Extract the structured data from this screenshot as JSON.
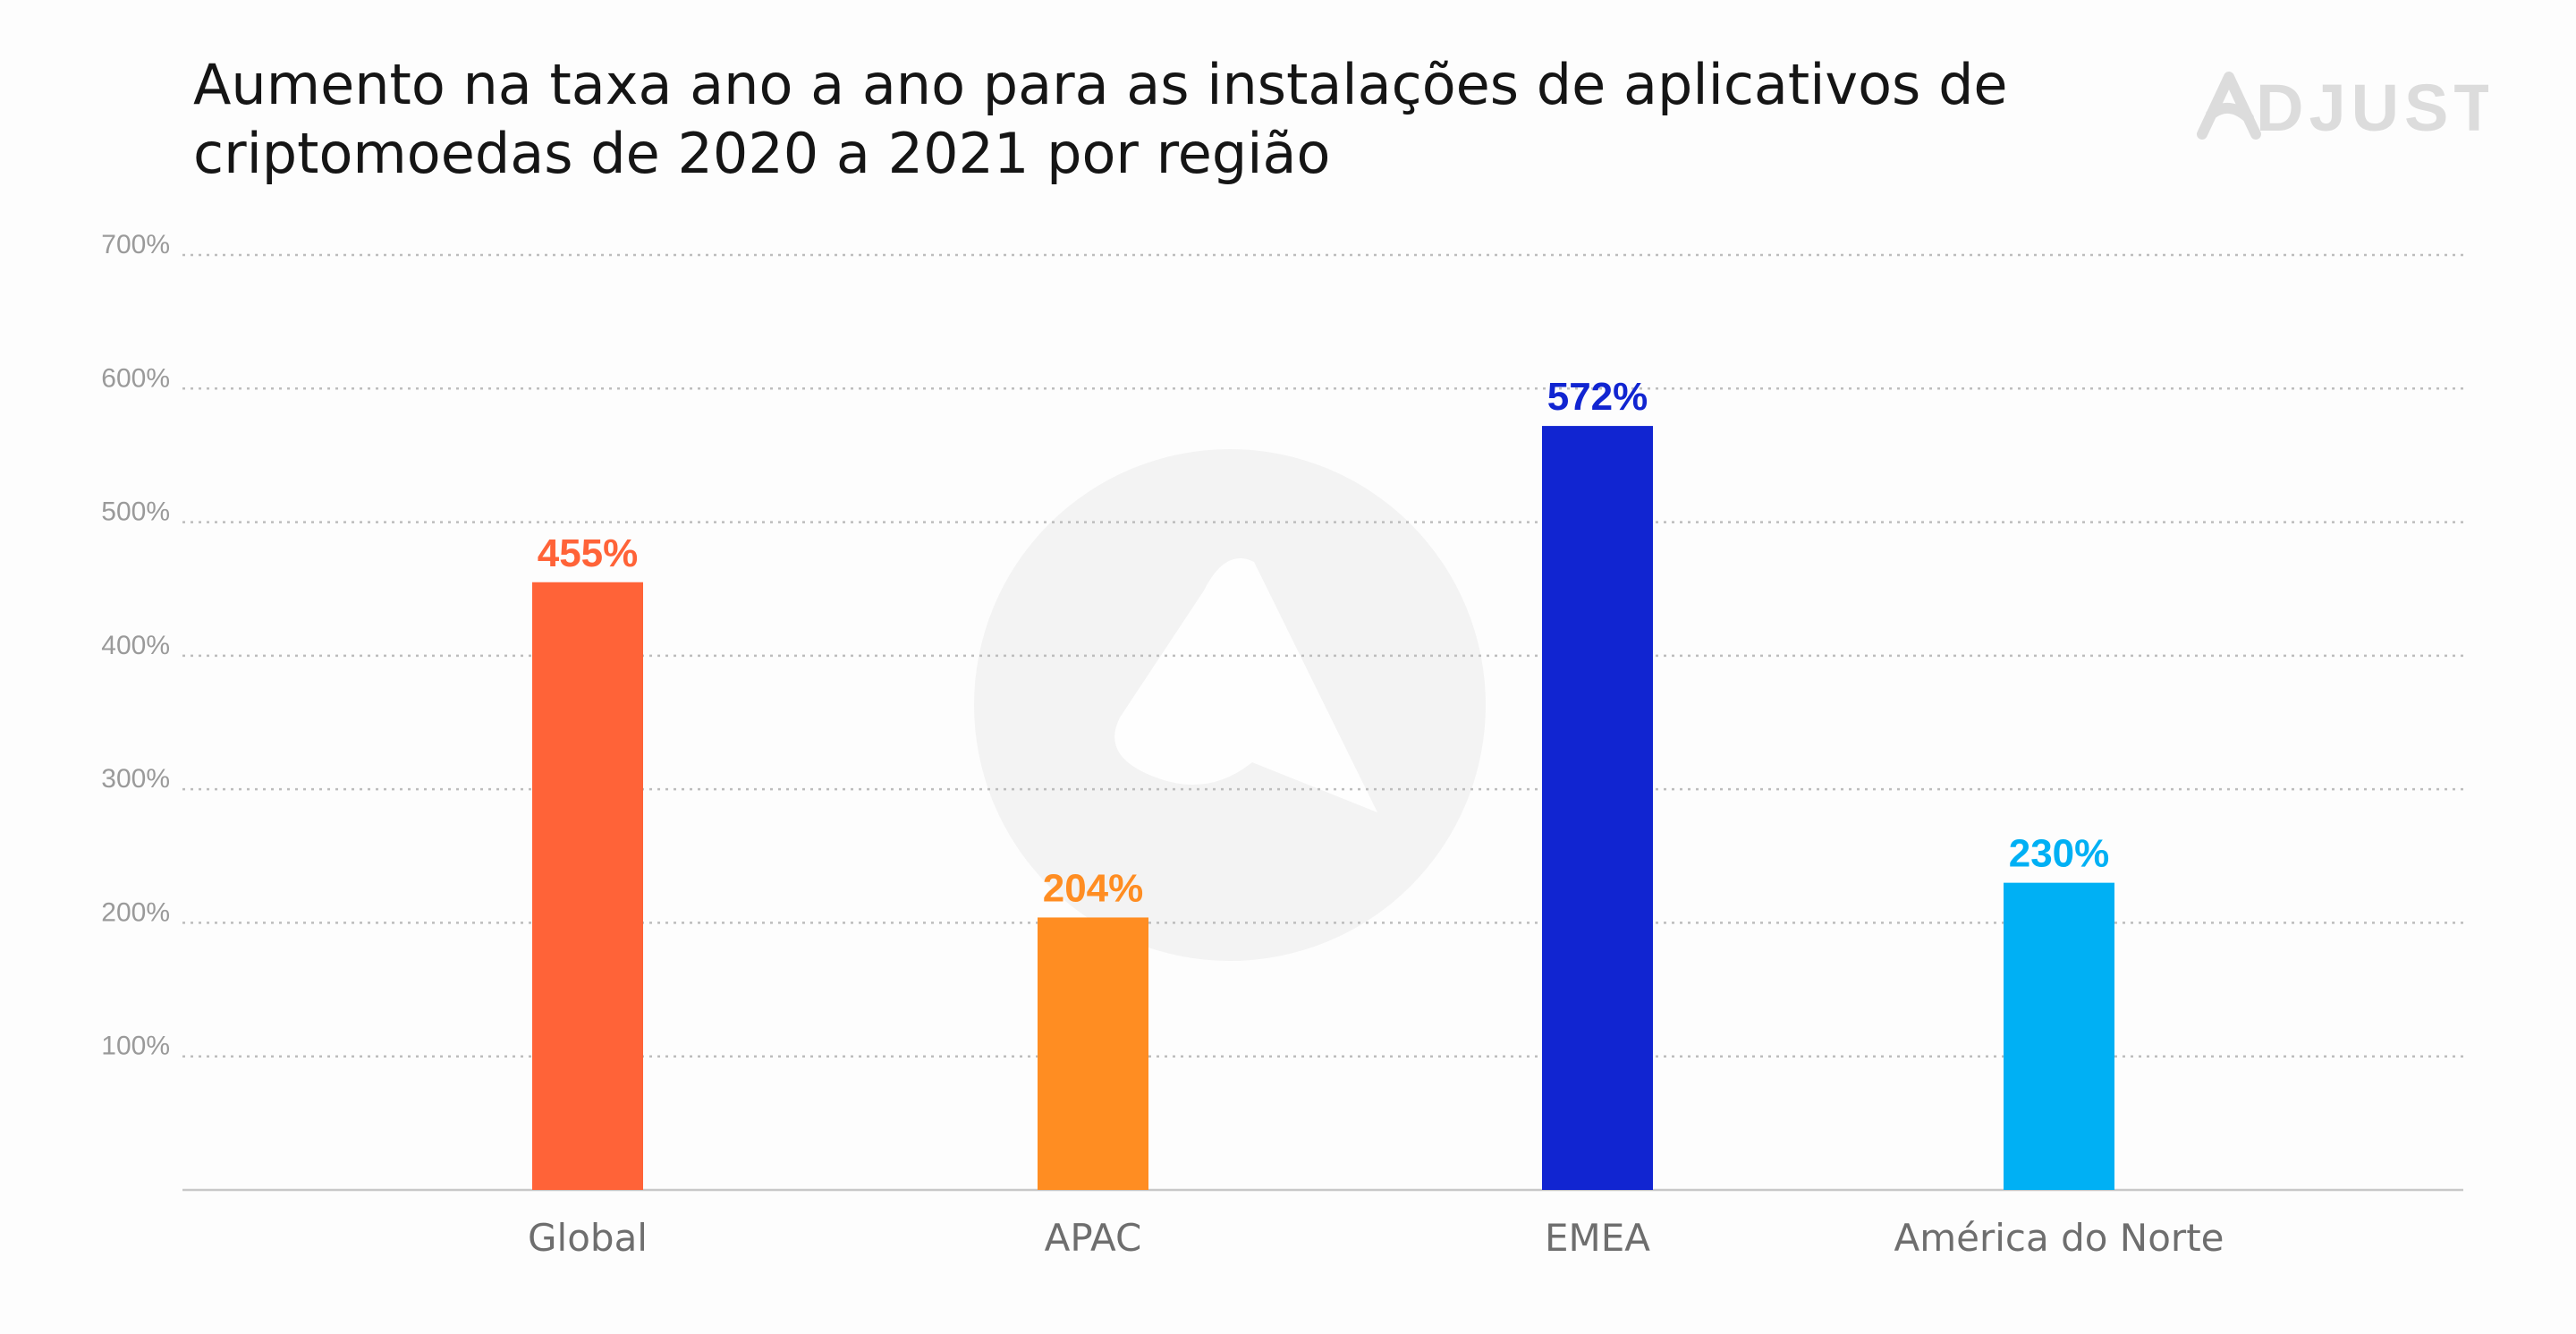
{
  "chart_data": {
    "type": "bar",
    "title_lines": [
      "Aumento na taxa ano a ano para as instalações de aplicativos de",
      "criptomoedas de 2020 a 2021 por região"
    ],
    "categories": [
      "Global",
      "APAC",
      "EMEA",
      "América do Norte"
    ],
    "values": [
      455,
      204,
      572,
      230
    ],
    "value_labels": [
      "455%",
      "204%",
      "572%",
      "230%"
    ],
    "colors": [
      "#ff6338",
      "#ff8d22",
      "#1125d1",
      "#00b0f4"
    ],
    "y_ticks": [
      {
        "value": 100,
        "label": "100%"
      },
      {
        "value": 200,
        "label": "200%"
      },
      {
        "value": 300,
        "label": "300%"
      },
      {
        "value": 400,
        "label": "400%"
      },
      {
        "value": 500,
        "label": "500%"
      },
      {
        "value": 600,
        "label": "600%"
      },
      {
        "value": 700,
        "label": "700%"
      }
    ],
    "ylim": [
      0,
      700
    ],
    "grid": true,
    "xlabel": "",
    "ylabel": ""
  },
  "brand": {
    "logo_text": "ADJUST",
    "logo_color": "#dcdcdc",
    "watermark_color": "#f3f3f3"
  }
}
